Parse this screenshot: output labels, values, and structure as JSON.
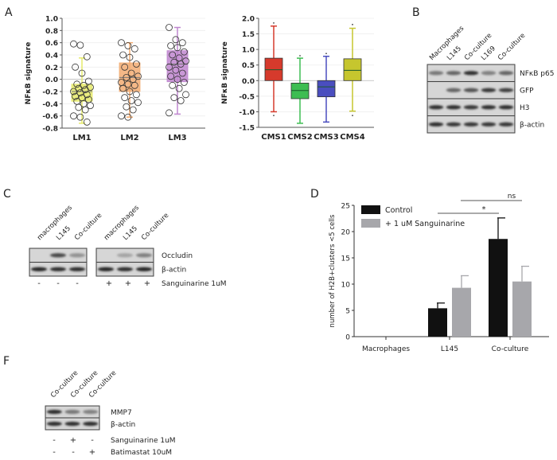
{
  "panel_labels": {
    "A": "A",
    "B": "B",
    "C": "C",
    "D": "D",
    "F": "F"
  },
  "chart_data": [
    {
      "id": "A-left",
      "type": "box",
      "ylabel": "NFκB signature",
      "ylim": [
        -0.8,
        1.0
      ],
      "yticks": [
        "1.0",
        "0.8",
        "0.6",
        "0.4",
        "0.2",
        "0.0",
        "-0.2",
        "-0.4",
        "-0.6",
        "-0.8"
      ],
      "categories": [
        "LM1",
        "LM2",
        "LM3"
      ],
      "boxes": [
        {
          "min": -0.72,
          "q1": -0.36,
          "median": -0.2,
          "q3": -0.08,
          "max": 0.35,
          "color": "#e6ea6a",
          "points": [
            0.58,
            0.56,
            0.37,
            0.2,
            0.1,
            -0.03,
            -0.08,
            -0.1,
            -0.13,
            -0.15,
            -0.17,
            -0.2,
            -0.22,
            -0.25,
            -0.28,
            -0.3,
            -0.33,
            -0.36,
            -0.4,
            -0.43,
            -0.46,
            -0.5,
            -0.6,
            -0.62,
            -0.7
          ]
        },
        {
          "min": -0.62,
          "q1": -0.2,
          "median": 0.03,
          "q3": 0.27,
          "max": 0.6,
          "color": "#f2ac72",
          "points": [
            0.6,
            0.55,
            0.5,
            0.4,
            0.36,
            0.25,
            0.2,
            0.1,
            0.05,
            0.03,
            0.0,
            -0.05,
            -0.08,
            -0.1,
            -0.15,
            -0.2,
            -0.25,
            -0.3,
            -0.35,
            -0.38,
            -0.45,
            -0.5,
            -0.6,
            -0.62
          ]
        },
        {
          "min": -0.57,
          "q1": -0.04,
          "median": 0.25,
          "q3": 0.47,
          "max": 0.85,
          "color": "#bf86cf",
          "points": [
            0.85,
            0.65,
            0.6,
            0.55,
            0.52,
            0.45,
            0.4,
            0.35,
            0.3,
            0.28,
            0.25,
            0.2,
            0.15,
            0.1,
            0.05,
            0.0,
            -0.05,
            -0.1,
            -0.15,
            -0.25,
            -0.3,
            -0.35,
            -0.55
          ]
        }
      ]
    },
    {
      "id": "A-right",
      "type": "box",
      "ylabel": "NFκB signature",
      "ylim": [
        -1.5,
        2.0
      ],
      "yticks": [
        "2.0",
        "1.5",
        "1.0",
        "0.5",
        "0.0",
        "-0.5",
        "-1.0",
        "-1.5"
      ],
      "categories": [
        "CMS1",
        "CMS2",
        "CMS3",
        "CMS4"
      ],
      "boxes": [
        {
          "min": -1.0,
          "q1": 0.0,
          "median": 0.35,
          "q3": 0.72,
          "max": 1.75,
          "outliers": [
            -1.12,
            1.85
          ],
          "color": "#d63a2c"
        },
        {
          "min": -1.37,
          "q1": -0.58,
          "median": -0.32,
          "q3": -0.08,
          "max": 0.72,
          "outliers": [
            0.8
          ],
          "color": "#3dbd52"
        },
        {
          "min": -1.33,
          "q1": -0.52,
          "median": -0.2,
          "q3": 0.0,
          "max": 0.78,
          "outliers": [
            0.87
          ],
          "color": "#4a4ebf"
        },
        {
          "min": -0.98,
          "q1": 0.0,
          "median": 0.33,
          "q3": 0.7,
          "max": 1.68,
          "outliers": [
            -1.12,
            1.8
          ],
          "color": "#c6c62e"
        }
      ]
    },
    {
      "id": "D",
      "type": "bar",
      "ylabel": "number of H2B+clusters <5 cells",
      "ylim": [
        0,
        25
      ],
      "yticks": [
        "25",
        "20",
        "15",
        "10",
        "5",
        "0"
      ],
      "categories": [
        "Macrophages",
        "L145",
        "Co-culture"
      ],
      "legend_position": "top-left",
      "series": [
        {
          "name": "Control",
          "color": "#111111",
          "values": [
            0,
            5.4,
            18.6
          ],
          "error": [
            0,
            1.0,
            4.0
          ]
        },
        {
          "name": "+ 1 uM Sanguinarine",
          "color": "#a7a7ab",
          "values": [
            0,
            9.3,
            10.5
          ],
          "error": [
            0,
            2.3,
            2.9
          ]
        }
      ],
      "annotations": [
        {
          "text": "*",
          "from": "L145 Control",
          "to": "Co-culture Control"
        },
        {
          "text": "ns",
          "from": "L145 Sanguinarine",
          "to": "Co-culture Sanguinarine"
        }
      ]
    }
  ],
  "blots": {
    "B": {
      "lanes": [
        "Macrophages",
        "L145",
        "Co-culture",
        "L169",
        "Co-culture"
      ],
      "rows": [
        {
          "label": "NFκB p65",
          "bands": [
            0.45,
            0.55,
            0.85,
            0.4,
            0.55
          ]
        },
        {
          "label": "GFP",
          "bands": [
            0,
            0.55,
            0.65,
            0.8,
            0.75
          ]
        },
        {
          "label": "H3",
          "bands": [
            0.85,
            0.85,
            0.8,
            0.85,
            0.85
          ]
        },
        {
          "label": "β-actin",
          "bands": [
            0.85,
            0.8,
            0.8,
            0.8,
            0.8
          ]
        }
      ]
    },
    "C": {
      "lanes_left": [
        "macrophages",
        "L145",
        "Co-culture"
      ],
      "lanes_right": [
        "macrophages",
        "L145",
        "Co-culture"
      ],
      "rows": [
        {
          "label": "Occludin",
          "bands_left": [
            0,
            0.7,
            0.3
          ],
          "bands_right": [
            0,
            0.2,
            0.4
          ]
        },
        {
          "label": "β-actin",
          "bands_left": [
            0.9,
            0.85,
            0.85
          ],
          "bands_right": [
            0.9,
            0.85,
            0.9
          ]
        }
      ],
      "treatment": {
        "label": "Sanguinarine 1uM",
        "signs": [
          "-",
          "-",
          "-",
          "+",
          "+",
          "+"
        ]
      }
    },
    "F": {
      "lanes": [
        "Co-culture",
        "Co-culture",
        "Co-culture"
      ],
      "rows": [
        {
          "label": "MMP7",
          "bands": [
            0.85,
            0.45,
            0.4
          ]
        },
        {
          "label": "β-actin",
          "bands": [
            0.85,
            0.85,
            0.85
          ]
        }
      ],
      "treatments": [
        {
          "label": "Sanguinarine 1uM",
          "signs": [
            "-",
            "+",
            "-"
          ]
        },
        {
          "label": "Batimastat 10uM",
          "signs": [
            "-",
            "-",
            "+"
          ]
        }
      ]
    }
  }
}
